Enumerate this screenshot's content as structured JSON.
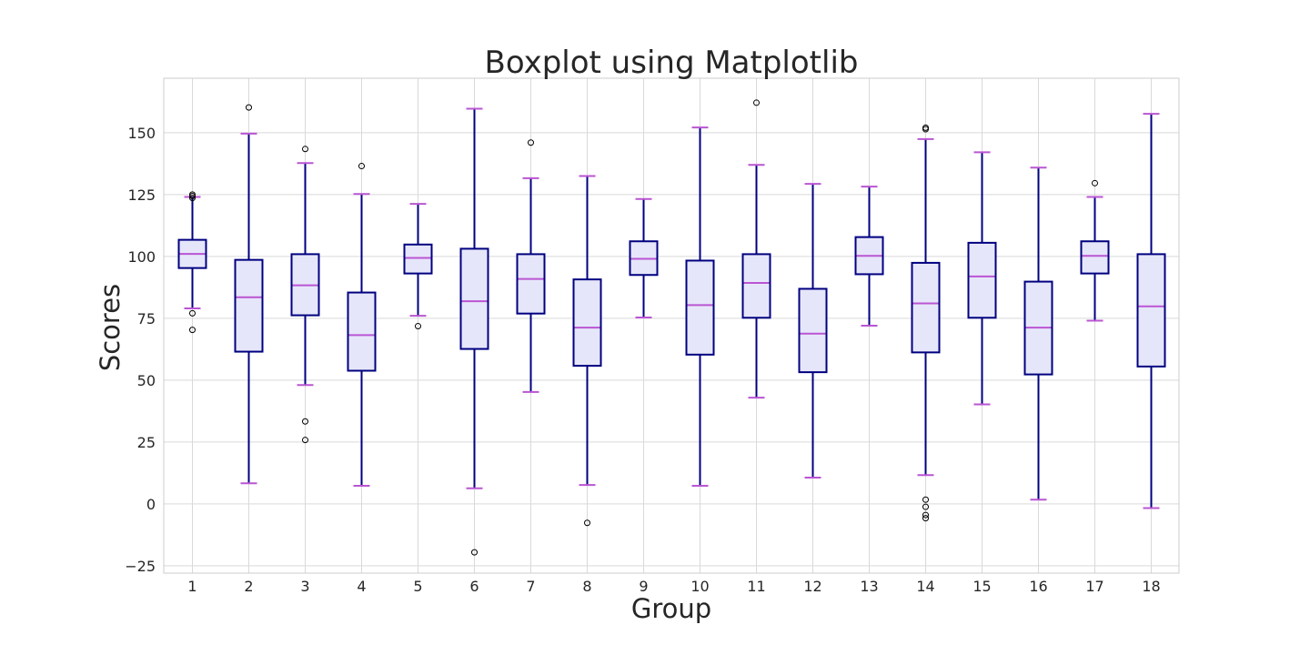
{
  "chart_data": {
    "type": "boxplot",
    "title": "Boxplot using Matplotlib",
    "xlabel": "Group",
    "ylabel": "Scores",
    "ylim": [
      -28,
      172
    ],
    "yticks": [
      -25,
      0,
      25,
      50,
      75,
      100,
      125,
      150
    ],
    "grid": true,
    "categories": [
      "1",
      "2",
      "3",
      "4",
      "5",
      "6",
      "7",
      "8",
      "9",
      "10",
      "11",
      "12",
      "13",
      "14",
      "15",
      "16",
      "17",
      "18"
    ],
    "boxes": [
      {
        "whislo": 79,
        "q1": 95.3,
        "med": 101,
        "q3": 106.7,
        "whishi": 124,
        "fliers": [
          70.3,
          77,
          123.6,
          124.4,
          125
        ]
      },
      {
        "whislo": 8.3,
        "q1": 61.5,
        "med": 83.5,
        "q3": 98.6,
        "whishi": 149.6,
        "fliers": [
          160.2
        ]
      },
      {
        "whislo": 48,
        "q1": 76.2,
        "med": 88.3,
        "q3": 100.9,
        "whishi": 137.7,
        "fliers": [
          25.8,
          33.3,
          143.4
        ]
      },
      {
        "whislo": 7.3,
        "q1": 53.8,
        "med": 68.2,
        "q3": 85.4,
        "whishi": 125.2,
        "fliers": [
          136.5
        ]
      },
      {
        "whislo": 76,
        "q1": 93.1,
        "med": 99.4,
        "q3": 104.8,
        "whishi": 121.2,
        "fliers": [
          71.8
        ]
      },
      {
        "whislo": 6.3,
        "q1": 62.6,
        "med": 81.9,
        "q3": 103.1,
        "whishi": 159.7,
        "fliers": [
          -19.6
        ]
      },
      {
        "whislo": 45.2,
        "q1": 76.9,
        "med": 90.9,
        "q3": 100.9,
        "whishi": 131.6,
        "fliers": [
          146
        ]
      },
      {
        "whislo": 7.6,
        "q1": 55.8,
        "med": 71.2,
        "q3": 90.7,
        "whishi": 132.5,
        "fliers": [
          -7.7
        ]
      },
      {
        "whislo": 75.3,
        "q1": 92.5,
        "med": 99,
        "q3": 106.1,
        "whishi": 123.2,
        "fliers": []
      },
      {
        "whislo": 7.3,
        "q1": 60.3,
        "med": 80.3,
        "q3": 98.3,
        "whishi": 152.1,
        "fliers": []
      },
      {
        "whislo": 42.9,
        "q1": 75.2,
        "med": 89.3,
        "q3": 100.9,
        "whishi": 137,
        "fliers": [
          162.1
        ]
      },
      {
        "whislo": 10.6,
        "q1": 53.2,
        "med": 68.8,
        "q3": 86.9,
        "whishi": 129.3,
        "fliers": []
      },
      {
        "whislo": 72,
        "q1": 92.8,
        "med": 100.2,
        "q3": 107.8,
        "whishi": 128.2,
        "fliers": []
      },
      {
        "whislo": 11.6,
        "q1": 61.2,
        "med": 81,
        "q3": 97.4,
        "whishi": 147.4,
        "fliers": [
          -5.8,
          -4.5,
          -1.2,
          1.7,
          151.4,
          152
        ]
      },
      {
        "whislo": 40.2,
        "q1": 75.2,
        "med": 91.9,
        "q3": 105.5,
        "whishi": 142.1,
        "fliers": []
      },
      {
        "whislo": 1.7,
        "q1": 52.3,
        "med": 71.2,
        "q3": 89.8,
        "whishi": 135.9,
        "fliers": []
      },
      {
        "whislo": 74,
        "q1": 93.1,
        "med": 100.2,
        "q3": 106.1,
        "whishi": 124,
        "fliers": [
          129.6
        ]
      },
      {
        "whislo": -1.7,
        "q1": 55.5,
        "med": 79.8,
        "q3": 100.9,
        "whishi": 157.6,
        "fliers": []
      }
    ],
    "colors": {
      "box_edge": "#000080",
      "box_fill": "#e6e6fa",
      "median": "#ba55d3",
      "caps": "#ba55d3",
      "whiskers": "#000080",
      "grid": "#d9d9d9",
      "flier_edge": "#000000"
    }
  }
}
